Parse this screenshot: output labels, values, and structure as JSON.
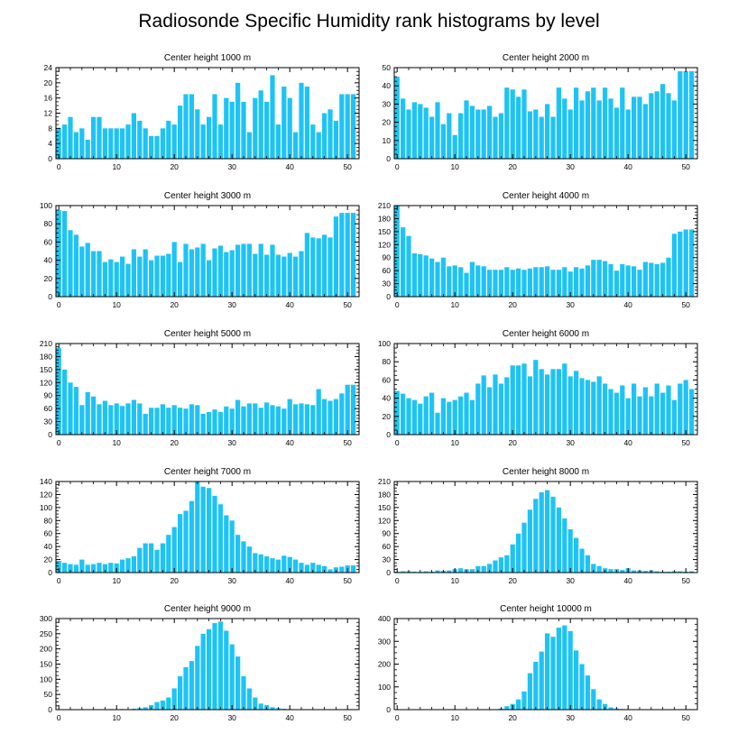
{
  "title": "Radiosonde Specific Humidity rank histograms by level",
  "bar_color": "#1ec3f5",
  "chart_data": [
    {
      "type": "bar",
      "title": "Center height 1000 m",
      "x": [
        0,
        1,
        2,
        3,
        4,
        5,
        6,
        7,
        8,
        9,
        10,
        11,
        12,
        13,
        14,
        15,
        16,
        17,
        18,
        19,
        20,
        21,
        22,
        23,
        24,
        25,
        26,
        27,
        28,
        29,
        30,
        31,
        32,
        33,
        34,
        35,
        36,
        37,
        38,
        39,
        40,
        41,
        42,
        43,
        44,
        45,
        46,
        47,
        48,
        49,
        50,
        51
      ],
      "values": [
        8,
        9,
        11,
        7,
        8,
        5,
        11,
        11,
        8,
        8,
        8,
        8,
        9,
        12,
        10,
        8,
        6,
        6,
        8,
        10,
        9,
        14,
        17,
        17,
        13,
        9,
        11,
        17,
        9,
        16,
        15,
        20,
        15,
        7,
        16,
        18,
        15,
        22,
        9,
        19,
        16,
        7,
        20,
        19,
        9,
        7,
        12,
        13,
        10,
        17,
        17,
        17
      ],
      "ylim": [
        0,
        24
      ],
      "yticks": [
        0,
        4,
        8,
        12,
        16,
        20,
        24
      ],
      "xlim": [
        -0.5,
        52
      ],
      "xticks": [
        0,
        10,
        20,
        30,
        40,
        50
      ]
    },
    {
      "type": "bar",
      "title": "Center height 2000 m",
      "x": [
        0,
        1,
        2,
        3,
        4,
        5,
        6,
        7,
        8,
        9,
        10,
        11,
        12,
        13,
        14,
        15,
        16,
        17,
        18,
        19,
        20,
        21,
        22,
        23,
        24,
        25,
        26,
        27,
        28,
        29,
        30,
        31,
        32,
        33,
        34,
        35,
        36,
        37,
        38,
        39,
        40,
        41,
        42,
        43,
        44,
        45,
        46,
        47,
        48,
        49,
        50,
        51
      ],
      "values": [
        45,
        33,
        27,
        31,
        30,
        28,
        23,
        31,
        19,
        25,
        13,
        25,
        32,
        29,
        27,
        27,
        29,
        23,
        25,
        39,
        38,
        34,
        38,
        26,
        27,
        23,
        30,
        23,
        39,
        33,
        27,
        39,
        32,
        37,
        39,
        32,
        39,
        33,
        28,
        39,
        27,
        34,
        34,
        30,
        36,
        37,
        41,
        36,
        32,
        48,
        48,
        48
      ],
      "ylim": [
        0,
        50
      ],
      "yticks": [
        0,
        10,
        20,
        30,
        40,
        50
      ],
      "xlim": [
        -0.5,
        52
      ],
      "xticks": [
        0,
        10,
        20,
        30,
        40,
        50
      ]
    },
    {
      "type": "bar",
      "title": "Center height 3000 m",
      "x": [
        0,
        1,
        2,
        3,
        4,
        5,
        6,
        7,
        8,
        9,
        10,
        11,
        12,
        13,
        14,
        15,
        16,
        17,
        18,
        19,
        20,
        21,
        22,
        23,
        24,
        25,
        26,
        27,
        28,
        29,
        30,
        31,
        32,
        33,
        34,
        35,
        36,
        37,
        38,
        39,
        40,
        41,
        42,
        43,
        44,
        45,
        46,
        47,
        48,
        49,
        50,
        51
      ],
      "values": [
        95,
        94,
        73,
        68,
        55,
        59,
        50,
        50,
        38,
        41,
        38,
        44,
        36,
        52,
        44,
        52,
        40,
        45,
        45,
        47,
        60,
        38,
        58,
        52,
        54,
        58,
        40,
        53,
        56,
        49,
        51,
        57,
        58,
        58,
        47,
        58,
        46,
        57,
        46,
        44,
        48,
        44,
        50,
        70,
        65,
        64,
        68,
        65,
        88,
        92,
        92,
        92
      ],
      "ylim": [
        0,
        100
      ],
      "yticks": [
        0,
        20,
        40,
        60,
        80,
        100
      ],
      "xlim": [
        -0.5,
        52
      ],
      "xticks": [
        0,
        10,
        20,
        30,
        40,
        50
      ]
    },
    {
      "type": "bar",
      "title": "Center height 4000 m",
      "x": [
        0,
        1,
        2,
        3,
        4,
        5,
        6,
        7,
        8,
        9,
        10,
        11,
        12,
        13,
        14,
        15,
        16,
        17,
        18,
        19,
        20,
        21,
        22,
        23,
        24,
        25,
        26,
        27,
        28,
        29,
        30,
        31,
        32,
        33,
        34,
        35,
        36,
        37,
        38,
        39,
        40,
        41,
        42,
        43,
        44,
        45,
        46,
        47,
        48,
        49,
        50,
        51
      ],
      "values": [
        210,
        160,
        140,
        100,
        98,
        95,
        88,
        80,
        90,
        70,
        72,
        68,
        55,
        80,
        72,
        70,
        62,
        62,
        62,
        68,
        62,
        65,
        62,
        65,
        68,
        68,
        70,
        62,
        62,
        68,
        58,
        68,
        65,
        72,
        85,
        85,
        82,
        75,
        60,
        75,
        72,
        70,
        62,
        80,
        78,
        75,
        78,
        90,
        145,
        150,
        155,
        155
      ],
      "ylim": [
        0,
        210
      ],
      "yticks": [
        0,
        30,
        60,
        90,
        120,
        150,
        180,
        210
      ],
      "xlim": [
        -0.5,
        52
      ],
      "xticks": [
        0,
        10,
        20,
        30,
        40,
        50
      ]
    },
    {
      "type": "bar",
      "title": "Center height 5000 m",
      "x": [
        0,
        1,
        2,
        3,
        4,
        5,
        6,
        7,
        8,
        9,
        10,
        11,
        12,
        13,
        14,
        15,
        16,
        17,
        18,
        19,
        20,
        21,
        22,
        23,
        24,
        25,
        26,
        27,
        28,
        29,
        30,
        31,
        32,
        33,
        34,
        35,
        36,
        37,
        38,
        39,
        40,
        41,
        42,
        43,
        44,
        45,
        46,
        47,
        48,
        49,
        50,
        51
      ],
      "values": [
        200,
        150,
        120,
        110,
        68,
        98,
        88,
        70,
        78,
        68,
        72,
        66,
        72,
        80,
        72,
        48,
        62,
        62,
        70,
        62,
        68,
        62,
        60,
        70,
        68,
        48,
        52,
        58,
        52,
        65,
        60,
        80,
        65,
        72,
        72,
        62,
        74,
        68,
        65,
        60,
        82,
        70,
        72,
        70,
        68,
        105,
        82,
        78,
        82,
        95,
        115,
        115
      ],
      "ylim": [
        0,
        210
      ],
      "yticks": [
        0,
        30,
        60,
        90,
        120,
        150,
        180,
        210
      ],
      "xlim": [
        -0.5,
        52
      ],
      "xticks": [
        0,
        10,
        20,
        30,
        40,
        50
      ]
    },
    {
      "type": "bar",
      "title": "Center height 6000 m",
      "x": [
        0,
        1,
        2,
        3,
        4,
        5,
        6,
        7,
        8,
        9,
        10,
        11,
        12,
        13,
        14,
        15,
        16,
        17,
        18,
        19,
        20,
        21,
        22,
        23,
        24,
        25,
        26,
        27,
        28,
        29,
        30,
        31,
        32,
        33,
        34,
        35,
        36,
        37,
        38,
        39,
        40,
        41,
        42,
        43,
        44,
        45,
        46,
        47,
        48,
        49,
        50,
        51
      ],
      "values": [
        48,
        45,
        40,
        38,
        34,
        42,
        46,
        24,
        40,
        36,
        38,
        42,
        46,
        38,
        56,
        65,
        52,
        66,
        56,
        63,
        76,
        76,
        78,
        64,
        82,
        72,
        66,
        72,
        72,
        78,
        64,
        70,
        62,
        60,
        58,
        64,
        56,
        50,
        46,
        54,
        40,
        56,
        42,
        52,
        42,
        56,
        46,
        54,
        38,
        56,
        60,
        50
      ],
      "ylim": [
        0,
        100
      ],
      "yticks": [
        0,
        20,
        40,
        60,
        80,
        100
      ],
      "xlim": [
        -0.5,
        52
      ],
      "xticks": [
        0,
        10,
        20,
        30,
        40,
        50
      ]
    },
    {
      "type": "bar",
      "title": "Center height 7000 m",
      "x": [
        0,
        1,
        2,
        3,
        4,
        5,
        6,
        7,
        8,
        9,
        10,
        11,
        12,
        13,
        14,
        15,
        16,
        17,
        18,
        19,
        20,
        21,
        22,
        23,
        24,
        25,
        26,
        27,
        28,
        29,
        30,
        31,
        32,
        33,
        34,
        35,
        36,
        37,
        38,
        39,
        40,
        41,
        42,
        43,
        44,
        45,
        46,
        47,
        48,
        49,
        50,
        51
      ],
      "values": [
        18,
        15,
        13,
        12,
        20,
        12,
        13,
        15,
        13,
        15,
        14,
        20,
        22,
        25,
        38,
        45,
        45,
        35,
        45,
        58,
        70,
        90,
        95,
        110,
        140,
        132,
        130,
        118,
        105,
        88,
        80,
        58,
        48,
        40,
        30,
        28,
        25,
        22,
        20,
        26,
        24,
        20,
        15,
        12,
        15,
        12,
        10,
        5,
        8,
        9,
        11,
        11
      ],
      "ylim": [
        0,
        140
      ],
      "yticks": [
        0,
        20,
        40,
        60,
        80,
        100,
        120,
        140
      ],
      "xlim": [
        -0.5,
        52
      ],
      "xticks": [
        0,
        10,
        20,
        30,
        40,
        50
      ]
    },
    {
      "type": "bar",
      "title": "Center height 8000 m",
      "x": [
        0,
        1,
        2,
        3,
        4,
        5,
        6,
        7,
        8,
        9,
        10,
        11,
        12,
        13,
        14,
        15,
        16,
        17,
        18,
        19,
        20,
        21,
        22,
        23,
        24,
        25,
        26,
        27,
        28,
        29,
        30,
        31,
        32,
        33,
        34,
        35,
        36,
        37,
        38,
        39,
        40,
        41,
        42,
        43,
        44,
        45,
        46,
        47,
        48,
        49,
        50,
        51
      ],
      "values": [
        2,
        3,
        3,
        2,
        2,
        3,
        2,
        5,
        4,
        5,
        8,
        10,
        8,
        8,
        15,
        15,
        20,
        28,
        35,
        40,
        65,
        90,
        115,
        145,
        170,
        185,
        190,
        175,
        150,
        125,
        100,
        80,
        55,
        40,
        20,
        15,
        10,
        8,
        8,
        6,
        10,
        5,
        5,
        4,
        5,
        3,
        2,
        2,
        3,
        3,
        2,
        3
      ],
      "ylim": [
        0,
        210
      ],
      "yticks": [
        0,
        30,
        60,
        90,
        120,
        150,
        180,
        210
      ],
      "xlim": [
        -0.5,
        52
      ],
      "xticks": [
        0,
        10,
        20,
        30,
        40,
        50
      ]
    },
    {
      "type": "bar",
      "title": "Center height 9000 m",
      "x": [
        0,
        1,
        2,
        3,
        4,
        5,
        6,
        7,
        8,
        9,
        10,
        11,
        12,
        13,
        14,
        15,
        16,
        17,
        18,
        19,
        20,
        21,
        22,
        23,
        24,
        25,
        26,
        27,
        28,
        29,
        30,
        31,
        32,
        33,
        34,
        35,
        36,
        37,
        38,
        39,
        40,
        41,
        42,
        43,
        44,
        45,
        46,
        47,
        48,
        49,
        50,
        51
      ],
      "values": [
        0,
        1,
        0,
        0,
        1,
        0,
        1,
        0,
        1,
        2,
        1,
        2,
        1,
        3,
        5,
        8,
        15,
        25,
        30,
        40,
        70,
        110,
        140,
        160,
        210,
        250,
        265,
        285,
        290,
        260,
        215,
        175,
        110,
        70,
        40,
        20,
        15,
        8,
        5,
        3,
        2,
        1,
        1,
        1,
        0,
        1,
        0,
        0,
        1,
        0,
        0,
        0
      ],
      "ylim": [
        0,
        300
      ],
      "yticks": [
        0,
        50,
        100,
        150,
        200,
        250,
        300
      ],
      "xlim": [
        -0.5,
        52
      ],
      "xticks": [
        0,
        10,
        20,
        30,
        40,
        50
      ]
    },
    {
      "type": "bar",
      "title": "Center height 10000 m",
      "x": [
        0,
        1,
        2,
        3,
        4,
        5,
        6,
        7,
        8,
        9,
        10,
        11,
        12,
        13,
        14,
        15,
        16,
        17,
        18,
        19,
        20,
        21,
        22,
        23,
        24,
        25,
        26,
        27,
        28,
        29,
        30,
        31,
        32,
        33,
        34,
        35,
        36,
        37,
        38,
        39,
        40,
        41,
        42,
        43,
        44,
        45,
        46,
        47,
        48,
        49,
        50,
        51
      ],
      "values": [
        0,
        0,
        0,
        0,
        0,
        0,
        0,
        0,
        0,
        0,
        0,
        0,
        0,
        0,
        0,
        0,
        0,
        2,
        5,
        15,
        25,
        45,
        80,
        160,
        210,
        255,
        335,
        320,
        360,
        370,
        345,
        260,
        200,
        150,
        90,
        45,
        25,
        10,
        5,
        3,
        1,
        1,
        0,
        0,
        0,
        0,
        0,
        0,
        0,
        0,
        0,
        0
      ],
      "ylim": [
        0,
        400
      ],
      "yticks": [
        0,
        100,
        200,
        300,
        400
      ],
      "xlim": [
        -0.5,
        52
      ],
      "xticks": [
        0,
        10,
        20,
        30,
        40,
        50
      ]
    }
  ]
}
